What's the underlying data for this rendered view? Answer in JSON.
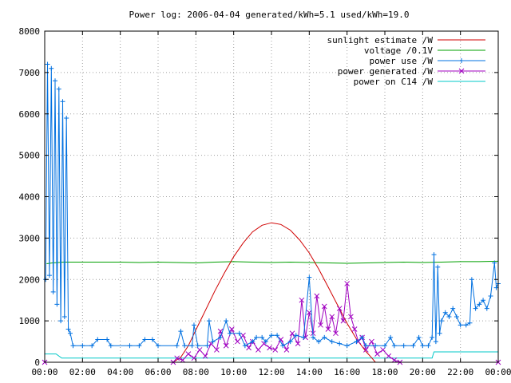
{
  "chart_data": {
    "type": "line",
    "title": "Power log: 2006-04-04 generated/kWh=5.1 used/kWh=19.0",
    "xlabel": "",
    "ylabel": "",
    "xlim": [
      0,
      24
    ],
    "ylim": [
      0,
      8000
    ],
    "x_ticks": [
      "00:00",
      "02:00",
      "04:00",
      "06:00",
      "08:00",
      "10:00",
      "12:00",
      "14:00",
      "16:00",
      "18:00",
      "20:00",
      "22:00",
      "00:00"
    ],
    "y_ticks": [
      "0",
      "1000",
      "2000",
      "3000",
      "4000",
      "5000",
      "6000",
      "7000",
      "8000"
    ],
    "grid": true,
    "legend_position": "top-right",
    "series": [
      {
        "name": "sunlight estimate /W",
        "color": "#d00000",
        "marker": "none",
        "points": [
          [
            6.8,
            0
          ],
          [
            7.2,
            120
          ],
          [
            7.6,
            400
          ],
          [
            8.0,
            780
          ],
          [
            8.5,
            1250
          ],
          [
            9.0,
            1720
          ],
          [
            9.5,
            2150
          ],
          [
            10.0,
            2550
          ],
          [
            10.5,
            2880
          ],
          [
            11.0,
            3150
          ],
          [
            11.5,
            3310
          ],
          [
            12.0,
            3370
          ],
          [
            12.5,
            3330
          ],
          [
            13.0,
            3190
          ],
          [
            13.5,
            2950
          ],
          [
            14.0,
            2640
          ],
          [
            14.5,
            2250
          ],
          [
            15.0,
            1820
          ],
          [
            15.5,
            1380
          ],
          [
            16.0,
            940
          ],
          [
            16.5,
            560
          ],
          [
            17.0,
            260
          ],
          [
            17.3,
            110
          ],
          [
            17.5,
            0
          ]
        ]
      },
      {
        "name": "voltage /0.1V",
        "color": "#00a000",
        "marker": "none",
        "points": [
          [
            0.1,
            2380
          ],
          [
            0.4,
            2400
          ],
          [
            1,
            2420
          ],
          [
            2,
            2420
          ],
          [
            3,
            2420
          ],
          [
            4,
            2420
          ],
          [
            5,
            2410
          ],
          [
            6,
            2420
          ],
          [
            7,
            2410
          ],
          [
            8,
            2400
          ],
          [
            9,
            2420
          ],
          [
            10,
            2430
          ],
          [
            11,
            2420
          ],
          [
            12,
            2410
          ],
          [
            13,
            2420
          ],
          [
            14,
            2410
          ],
          [
            15,
            2400
          ],
          [
            16,
            2390
          ],
          [
            17,
            2400
          ],
          [
            18,
            2410
          ],
          [
            19,
            2420
          ],
          [
            20,
            2410
          ],
          [
            21,
            2420
          ],
          [
            22,
            2430
          ],
          [
            23,
            2430
          ],
          [
            24,
            2440
          ]
        ]
      },
      {
        "name": "power use /W",
        "color": "#0070e0",
        "marker": "plus",
        "points": [
          [
            0.05,
            2000
          ],
          [
            0.15,
            7200
          ],
          [
            0.25,
            2100
          ],
          [
            0.35,
            7100
          ],
          [
            0.45,
            1700
          ],
          [
            0.55,
            6800
          ],
          [
            0.65,
            1400
          ],
          [
            0.75,
            6600
          ],
          [
            0.85,
            1000
          ],
          [
            0.95,
            6300
          ],
          [
            1.05,
            1100
          ],
          [
            1.15,
            5900
          ],
          [
            1.25,
            800
          ],
          [
            1.35,
            700
          ],
          [
            1.5,
            400
          ],
          [
            2.0,
            400
          ],
          [
            2.5,
            400
          ],
          [
            2.8,
            550
          ],
          [
            3.3,
            550
          ],
          [
            3.5,
            400
          ],
          [
            4.5,
            400
          ],
          [
            5.0,
            400
          ],
          [
            5.3,
            550
          ],
          [
            5.7,
            550
          ],
          [
            6.0,
            400
          ],
          [
            7.0,
            400
          ],
          [
            7.2,
            750
          ],
          [
            7.4,
            400
          ],
          [
            7.8,
            400
          ],
          [
            7.9,
            900
          ],
          [
            8.1,
            400
          ],
          [
            8.6,
            400
          ],
          [
            8.7,
            1000
          ],
          [
            8.9,
            500
          ],
          [
            9.3,
            600
          ],
          [
            9.6,
            1000
          ],
          [
            9.8,
            700
          ],
          [
            10.3,
            700
          ],
          [
            10.6,
            400
          ],
          [
            11.0,
            500
          ],
          [
            11.2,
            600
          ],
          [
            11.5,
            600
          ],
          [
            11.7,
            500
          ],
          [
            12.0,
            650
          ],
          [
            12.3,
            650
          ],
          [
            12.6,
            400
          ],
          [
            13.0,
            500
          ],
          [
            13.3,
            650
          ],
          [
            13.7,
            600
          ],
          [
            14.0,
            2050
          ],
          [
            14.2,
            600
          ],
          [
            14.5,
            500
          ],
          [
            14.8,
            600
          ],
          [
            15.2,
            500
          ],
          [
            15.6,
            450
          ],
          [
            16.0,
            400
          ],
          [
            16.5,
            500
          ],
          [
            16.8,
            600
          ],
          [
            17.0,
            400
          ],
          [
            17.5,
            400
          ],
          [
            18.0,
            400
          ],
          [
            18.3,
            600
          ],
          [
            18.5,
            400
          ],
          [
            19.0,
            400
          ],
          [
            19.5,
            400
          ],
          [
            19.8,
            600
          ],
          [
            20.0,
            400
          ],
          [
            20.3,
            400
          ],
          [
            20.5,
            600
          ],
          [
            20.6,
            2600
          ],
          [
            20.7,
            500
          ],
          [
            20.8,
            2300
          ],
          [
            20.9,
            700
          ],
          [
            21.0,
            1000
          ],
          [
            21.2,
            1200
          ],
          [
            21.4,
            1100
          ],
          [
            21.6,
            1300
          ],
          [
            21.8,
            1100
          ],
          [
            22.0,
            900
          ],
          [
            22.3,
            900
          ],
          [
            22.5,
            950
          ],
          [
            22.6,
            2000
          ],
          [
            22.8,
            1300
          ],
          [
            23.0,
            1400
          ],
          [
            23.2,
            1500
          ],
          [
            23.4,
            1300
          ],
          [
            23.6,
            1600
          ],
          [
            23.8,
            2400
          ],
          [
            23.9,
            1800
          ],
          [
            24.0,
            1900
          ]
        ]
      },
      {
        "name": "power generated /W",
        "color": "#a000c0",
        "marker": "cross",
        "points": [
          [
            0,
            0
          ],
          [
            6.8,
            0
          ],
          [
            7.0,
            100
          ],
          [
            7.3,
            50
          ],
          [
            7.6,
            200
          ],
          [
            7.9,
            100
          ],
          [
            8.2,
            300
          ],
          [
            8.5,
            150
          ],
          [
            8.8,
            450
          ],
          [
            9.1,
            300
          ],
          [
            9.3,
            750
          ],
          [
            9.6,
            400
          ],
          [
            9.9,
            800
          ],
          [
            10.2,
            500
          ],
          [
            10.5,
            650
          ],
          [
            10.8,
            350
          ],
          [
            11.0,
            500
          ],
          [
            11.3,
            300
          ],
          [
            11.6,
            450
          ],
          [
            11.9,
            350
          ],
          [
            12.2,
            300
          ],
          [
            12.5,
            550
          ],
          [
            12.8,
            300
          ],
          [
            13.1,
            700
          ],
          [
            13.4,
            450
          ],
          [
            13.6,
            1500
          ],
          [
            13.8,
            600
          ],
          [
            14.0,
            1200
          ],
          [
            14.2,
            700
          ],
          [
            14.4,
            1600
          ],
          [
            14.6,
            900
          ],
          [
            14.8,
            1350
          ],
          [
            15.0,
            800
          ],
          [
            15.2,
            1100
          ],
          [
            15.4,
            700
          ],
          [
            15.6,
            1300
          ],
          [
            15.8,
            1000
          ],
          [
            16.0,
            1900
          ],
          [
            16.2,
            1100
          ],
          [
            16.4,
            800
          ],
          [
            16.6,
            500
          ],
          [
            16.8,
            600
          ],
          [
            17.0,
            300
          ],
          [
            17.3,
            500
          ],
          [
            17.6,
            200
          ],
          [
            17.9,
            300
          ],
          [
            18.2,
            150
          ],
          [
            18.5,
            50
          ],
          [
            18.8,
            0
          ],
          [
            24,
            0
          ]
        ]
      },
      {
        "name": "power on C14 /W",
        "color": "#00c8c8",
        "marker": "none",
        "points": [
          [
            0,
            200
          ],
          [
            0.6,
            200
          ],
          [
            0.9,
            100
          ],
          [
            2,
            100
          ],
          [
            4,
            100
          ],
          [
            6,
            100
          ],
          [
            8,
            100
          ],
          [
            10,
            100
          ],
          [
            12,
            100
          ],
          [
            14,
            100
          ],
          [
            16,
            100
          ],
          [
            18,
            100
          ],
          [
            20,
            100
          ],
          [
            20.5,
            100
          ],
          [
            20.6,
            250
          ],
          [
            22,
            250
          ],
          [
            24,
            250
          ]
        ]
      }
    ]
  }
}
